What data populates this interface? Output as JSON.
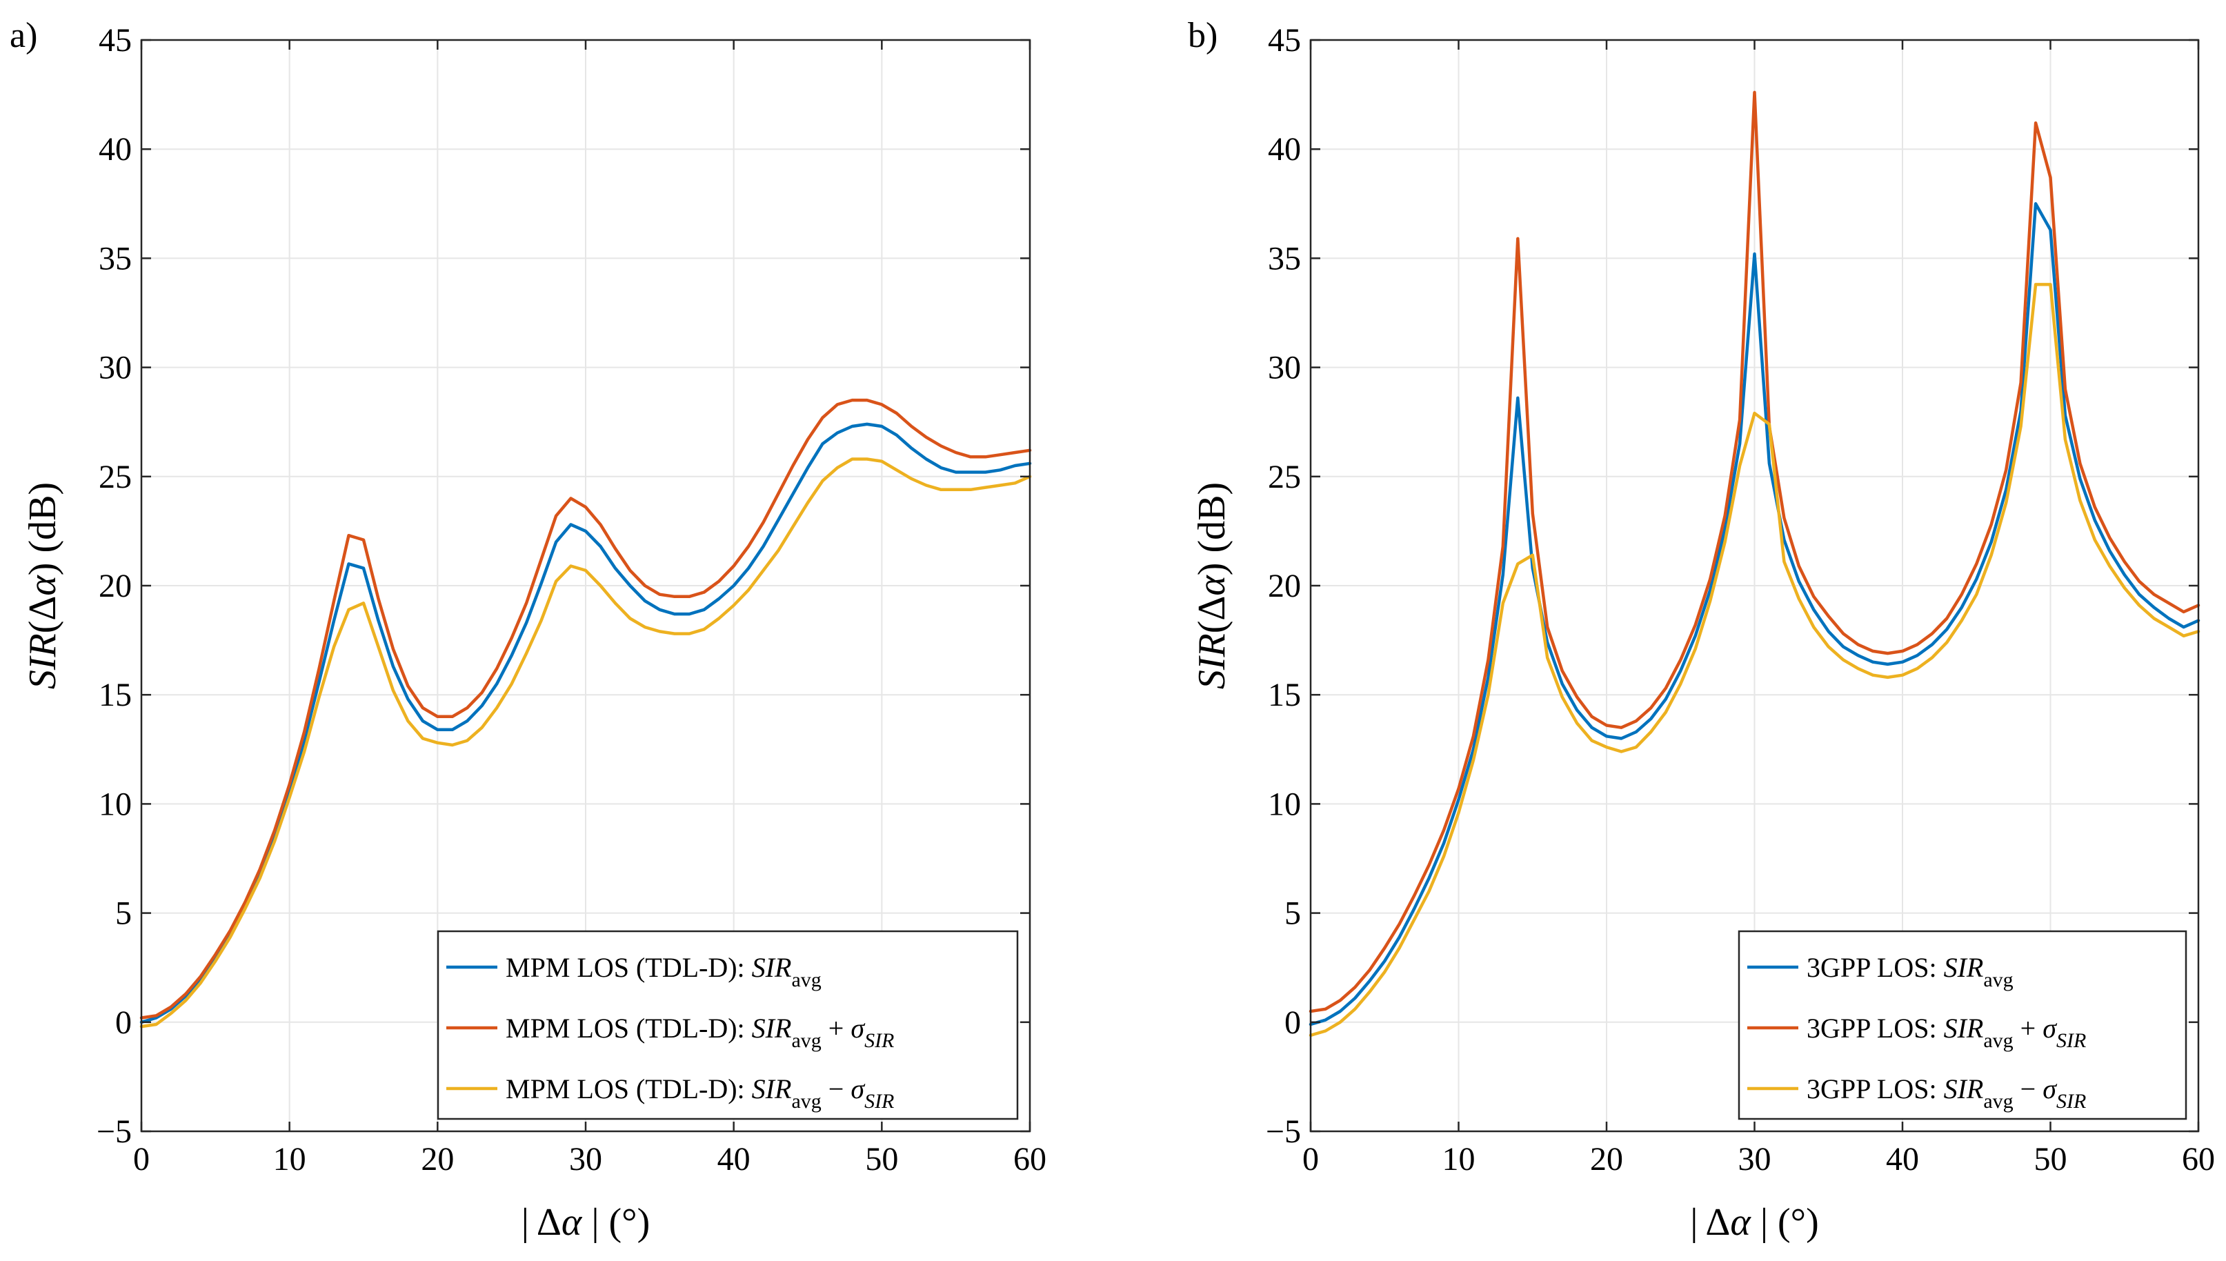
{
  "figure": {
    "panels": [
      {
        "label": "a)"
      },
      {
        "label": "b)"
      }
    ]
  },
  "colors": {
    "avg": "#0072BD",
    "plus": "#D95319",
    "minus": "#EDB120",
    "grid": "#e6e6e6",
    "axis": "#262626"
  },
  "chart_data": [
    {
      "type": "line",
      "panel": "a)",
      "title": "",
      "xlabel_parts": {
        "bar": "|",
        "delta": "Δ",
        "alpha": "α",
        "unit": "(°)"
      },
      "ylabel_parts": {
        "sir": "SIR",
        "open": "(",
        "delta": "Δ",
        "alpha": "α",
        "close": ")",
        "unit": "(dB)"
      },
      "xlim": [
        0,
        60
      ],
      "ylim": [
        -5,
        45
      ],
      "xticks": [
        0,
        10,
        20,
        30,
        40,
        50,
        60
      ],
      "yticks": [
        -5,
        0,
        5,
        10,
        15,
        20,
        25,
        30,
        35,
        40,
        45
      ],
      "xtick_labels": [
        "0",
        "10",
        "20",
        "30",
        "40",
        "50",
        "60"
      ],
      "ytick_labels": [
        "−5",
        "0",
        "5",
        "10",
        "15",
        "20",
        "25",
        "30",
        "35",
        "40",
        "45"
      ],
      "grid": true,
      "legend_position": "bottom-right",
      "x": [
        0,
        1,
        2,
        3,
        4,
        5,
        6,
        7,
        8,
        9,
        10,
        11,
        12,
        13,
        14,
        15,
        16,
        17,
        18,
        19,
        20,
        21,
        22,
        23,
        24,
        25,
        26,
        27,
        28,
        29,
        30,
        31,
        32,
        33,
        34,
        35,
        36,
        37,
        38,
        39,
        40,
        41,
        42,
        43,
        44,
        45,
        46,
        47,
        48,
        49,
        50,
        51,
        52,
        53,
        54,
        55,
        56,
        57,
        58,
        59,
        60
      ],
      "series": [
        {
          "key": "avg",
          "legend": {
            "prefix": "MPM LOS (TDL-D): ",
            "sir": "SIR",
            "sub": "avg",
            "op": "",
            "sigma": "",
            "sigma_sub": ""
          },
          "values": [
            0.0,
            0.2,
            0.6,
            1.2,
            2.0,
            3.0,
            4.1,
            5.4,
            6.9,
            8.6,
            10.6,
            12.9,
            15.6,
            18.4,
            21.0,
            20.8,
            18.4,
            16.3,
            14.8,
            13.8,
            13.4,
            13.4,
            13.8,
            14.5,
            15.5,
            16.8,
            18.3,
            20.1,
            22.0,
            22.8,
            22.5,
            21.8,
            20.8,
            20.0,
            19.3,
            18.9,
            18.7,
            18.7,
            18.9,
            19.4,
            20.0,
            20.8,
            21.8,
            23.0,
            24.2,
            25.4,
            26.5,
            27.0,
            27.3,
            27.4,
            27.3,
            26.9,
            26.3,
            25.8,
            25.4,
            25.2,
            25.2,
            25.2,
            25.3,
            25.5,
            25.6
          ]
        },
        {
          "key": "plus",
          "legend": {
            "prefix": "MPM LOS (TDL-D): ",
            "sir": "SIR",
            "sub": "avg",
            "op": " + ",
            "sigma": "σ",
            "sigma_sub": "SIR"
          },
          "values": [
            0.2,
            0.3,
            0.7,
            1.3,
            2.1,
            3.1,
            4.2,
            5.5,
            7.0,
            8.8,
            10.9,
            13.3,
            16.2,
            19.3,
            22.3,
            22.1,
            19.4,
            17.1,
            15.4,
            14.4,
            14.0,
            14.0,
            14.4,
            15.1,
            16.2,
            17.6,
            19.2,
            21.2,
            23.2,
            24.0,
            23.6,
            22.8,
            21.7,
            20.7,
            20.0,
            19.6,
            19.5,
            19.5,
            19.7,
            20.2,
            20.9,
            21.8,
            22.9,
            24.2,
            25.5,
            26.7,
            27.7,
            28.3,
            28.5,
            28.5,
            28.3,
            27.9,
            27.3,
            26.8,
            26.4,
            26.1,
            25.9,
            25.9,
            26.0,
            26.1,
            26.2
          ]
        },
        {
          "key": "minus",
          "legend": {
            "prefix": "MPM LOS (TDL-D): ",
            "sir": "SIR",
            "sub": "avg",
            "op": " − ",
            "sigma": "σ",
            "sigma_sub": "SIR"
          },
          "values": [
            -0.2,
            -0.1,
            0.4,
            1.0,
            1.8,
            2.8,
            3.9,
            5.2,
            6.6,
            8.3,
            10.3,
            12.4,
            14.9,
            17.2,
            18.9,
            19.2,
            17.2,
            15.2,
            13.8,
            13.0,
            12.8,
            12.7,
            12.9,
            13.5,
            14.4,
            15.5,
            16.9,
            18.4,
            20.2,
            20.9,
            20.7,
            20.0,
            19.2,
            18.5,
            18.1,
            17.9,
            17.8,
            17.8,
            18.0,
            18.5,
            19.1,
            19.8,
            20.7,
            21.6,
            22.7,
            23.8,
            24.8,
            25.4,
            25.8,
            25.8,
            25.7,
            25.3,
            24.9,
            24.6,
            24.4,
            24.4,
            24.4,
            24.5,
            24.6,
            24.7,
            25.0
          ]
        }
      ]
    },
    {
      "type": "line",
      "panel": "b)",
      "title": "",
      "xlabel_parts": {
        "bar": "|",
        "delta": "Δ",
        "alpha": "α",
        "unit": "(°)"
      },
      "ylabel_parts": {
        "sir": "SIR",
        "open": "(",
        "delta": "Δ",
        "alpha": "α",
        "close": ")",
        "unit": "(dB)"
      },
      "xlim": [
        0,
        60
      ],
      "ylim": [
        -5,
        45
      ],
      "xticks": [
        0,
        10,
        20,
        30,
        40,
        50,
        60
      ],
      "yticks": [
        -5,
        0,
        5,
        10,
        15,
        20,
        25,
        30,
        35,
        40,
        45
      ],
      "xtick_labels": [
        "0",
        "10",
        "20",
        "30",
        "40",
        "50",
        "60"
      ],
      "ytick_labels": [
        "−5",
        "0",
        "5",
        "10",
        "15",
        "20",
        "25",
        "30",
        "35",
        "40",
        "45"
      ],
      "grid": true,
      "legend_position": "bottom-right",
      "x": [
        0,
        1,
        2,
        3,
        4,
        5,
        6,
        7,
        8,
        9,
        10,
        11,
        12,
        13,
        14,
        15,
        16,
        17,
        18,
        19,
        20,
        21,
        22,
        23,
        24,
        25,
        26,
        27,
        28,
        29,
        30,
        31,
        32,
        33,
        34,
        35,
        36,
        37,
        38,
        39,
        40,
        41,
        42,
        43,
        44,
        45,
        46,
        47,
        48,
        49,
        50,
        51,
        52,
        53,
        54,
        55,
        56,
        57,
        58,
        59,
        60
      ],
      "series": [
        {
          "key": "avg",
          "legend": {
            "prefix": "3GPP LOS: ",
            "sir": "SIR",
            "sub": "avg",
            "op": "",
            "sigma": "",
            "sigma_sub": ""
          },
          "values": [
            -0.1,
            0.1,
            0.5,
            1.1,
            1.9,
            2.8,
            3.9,
            5.2,
            6.6,
            8.2,
            10.2,
            12.5,
            15.8,
            20.5,
            28.6,
            20.8,
            17.4,
            15.5,
            14.3,
            13.5,
            13.1,
            13.0,
            13.3,
            13.9,
            14.8,
            16.1,
            17.7,
            19.8,
            22.6,
            26.5,
            35.2,
            25.6,
            22.1,
            20.2,
            18.9,
            17.9,
            17.2,
            16.8,
            16.5,
            16.4,
            16.5,
            16.8,
            17.3,
            18.0,
            19.0,
            20.3,
            22.0,
            24.4,
            28.0,
            37.5,
            36.3,
            27.8,
            24.9,
            23.0,
            21.6,
            20.5,
            19.6,
            19.0,
            18.5,
            18.1,
            18.4
          ]
        },
        {
          "key": "plus",
          "legend": {
            "prefix": "3GPP LOS: ",
            "sir": "SIR",
            "sub": "avg",
            "op": " + ",
            "sigma": "σ",
            "sigma_sub": "SIR"
          },
          "values": [
            0.5,
            0.6,
            1.0,
            1.6,
            2.4,
            3.4,
            4.5,
            5.8,
            7.2,
            8.8,
            10.7,
            13.1,
            16.6,
            21.8,
            35.9,
            23.3,
            18.1,
            16.1,
            14.9,
            14.0,
            13.6,
            13.5,
            13.8,
            14.4,
            15.3,
            16.6,
            18.2,
            20.3,
            23.2,
            27.6,
            42.6,
            27.3,
            23.1,
            20.9,
            19.5,
            18.6,
            17.8,
            17.3,
            17.0,
            16.9,
            17.0,
            17.3,
            17.8,
            18.5,
            19.6,
            21.0,
            22.8,
            25.3,
            29.3,
            41.2,
            38.7,
            29.0,
            25.6,
            23.6,
            22.2,
            21.1,
            20.2,
            19.6,
            19.2,
            18.8,
            19.1
          ]
        },
        {
          "key": "minus",
          "legend": {
            "prefix": "3GPP LOS: ",
            "sir": "SIR",
            "sub": "avg",
            "op": " − ",
            "sigma": "σ",
            "sigma_sub": "SIR"
          },
          "values": [
            -0.6,
            -0.4,
            0.0,
            0.6,
            1.4,
            2.3,
            3.4,
            4.7,
            6.0,
            7.6,
            9.6,
            12.0,
            15.0,
            19.2,
            21.0,
            21.4,
            16.7,
            14.9,
            13.7,
            12.9,
            12.6,
            12.4,
            12.6,
            13.3,
            14.2,
            15.5,
            17.1,
            19.3,
            22.0,
            25.5,
            27.9,
            27.4,
            21.1,
            19.4,
            18.1,
            17.2,
            16.6,
            16.2,
            15.9,
            15.8,
            15.9,
            16.2,
            16.7,
            17.4,
            18.4,
            19.6,
            21.4,
            23.8,
            27.3,
            33.8,
            33.8,
            26.7,
            23.9,
            22.1,
            20.9,
            19.9,
            19.1,
            18.5,
            18.1,
            17.7,
            17.9
          ]
        }
      ]
    }
  ]
}
